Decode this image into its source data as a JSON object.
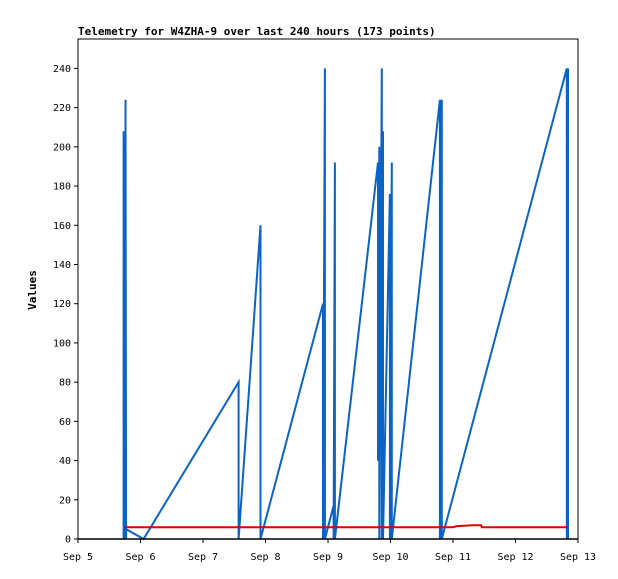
{
  "chart_data": {
    "type": "line",
    "title": "Telemetry for W4ZHA-9 over last 240 hours (173 points)",
    "xlabel": "",
    "ylabel": "Values",
    "xlim": [
      0,
      8
    ],
    "ylim": [
      0,
      255
    ],
    "x_tick_values": [
      0,
      1,
      2,
      3,
      4,
      5,
      6,
      7,
      8
    ],
    "x_tick_labels": [
      "Sep 5",
      "Sep 6",
      "Sep 7",
      "Sep 8",
      "Sep 9",
      "Sep 10",
      "Sep 11",
      "Sep 12",
      "Sep 13"
    ],
    "y_ticks": [
      0,
      20,
      40,
      60,
      80,
      100,
      120,
      140,
      160,
      180,
      200,
      220,
      240
    ],
    "grid": false,
    "series": [
      {
        "color": "#0b63c6",
        "x": [
          0.73,
          0.73,
          0.74,
          0.74,
          0.76,
          0.76,
          0.77,
          0.77,
          1.05,
          2.57,
          2.57,
          2.92,
          2.92,
          3.92,
          3.92,
          3.95,
          3.95,
          4.09,
          4.09,
          4.11,
          4.11,
          4.8,
          4.8,
          4.82,
          4.82,
          4.86,
          4.86,
          4.88,
          4.88,
          4.99,
          4.99,
          5.02,
          5.02,
          5.79,
          5.79,
          5.82,
          5.82,
          7.82,
          7.82,
          7.84,
          7.84
        ],
        "y": [
          0,
          208,
          0,
          80,
          0,
          224,
          0,
          5,
          0,
          80,
          0,
          160,
          0,
          120,
          0,
          240,
          0,
          17,
          0,
          192,
          0,
          192,
          40,
          200,
          0,
          240,
          0,
          208,
          0,
          176,
          0,
          192,
          0,
          224,
          0,
          224,
          0,
          240,
          0,
          240,
          0
        ]
      },
      {
        "color": "#e00000",
        "x": [
          0.75,
          6.0,
          6.05,
          6.3,
          6.45,
          6.46,
          7.84
        ],
        "y": [
          6,
          6,
          6.5,
          7,
          7,
          6,
          6
        ]
      }
    ]
  }
}
